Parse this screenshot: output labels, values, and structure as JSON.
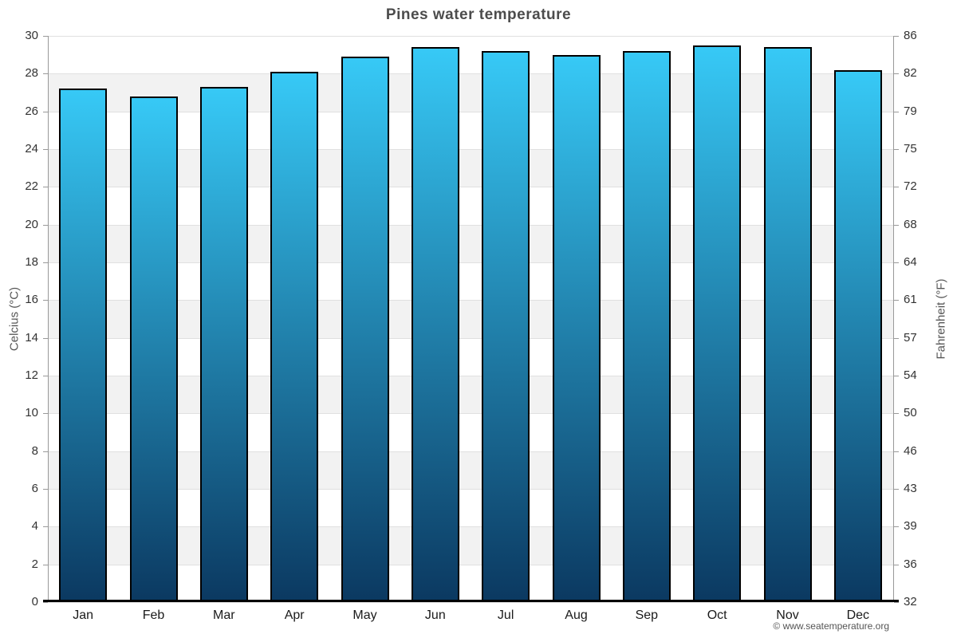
{
  "title": "Pines water temperature",
  "footer": "© www.seatemperature.org",
  "colors": {
    "bar_gradient_top": "#37c9f6",
    "bar_gradient_bottom": "#0b3961",
    "bar_border": "#000000",
    "band_alt": "#f2f2f2",
    "band_base": "#ffffff",
    "gridline": "#e0e0e0",
    "y_axis_line": "#999999",
    "x_axis_line": "#000000",
    "title_text": "#4c4c4c",
    "tick_text": "#333333",
    "month_text": "#1a1a1a",
    "axis_title_text": "#555555",
    "footer_text": "#555555"
  },
  "chart_data": {
    "type": "bar",
    "title": "Pines water temperature",
    "categories": [
      "Jan",
      "Feb",
      "Mar",
      "Apr",
      "May",
      "Jun",
      "Jul",
      "Aug",
      "Sep",
      "Oct",
      "Nov",
      "Dec"
    ],
    "series": [
      {
        "name": "Water temperature",
        "values": [
          27.2,
          26.8,
          27.3,
          28.1,
          28.9,
          29.4,
          29.2,
          29.0,
          29.2,
          29.5,
          29.4,
          28.2
        ]
      }
    ],
    "xlabel": "",
    "ylabel_left": "Celcius (°C)",
    "ylabel_right": "Fahrenheit (°F)",
    "ylim_left": [
      0,
      30
    ],
    "ylim_right": [
      32,
      86
    ],
    "yticks_left": [
      0,
      2,
      4,
      6,
      8,
      10,
      12,
      14,
      16,
      18,
      20,
      22,
      24,
      26,
      28,
      30
    ],
    "yticks_right": [
      32,
      36,
      39,
      43,
      46,
      50,
      54,
      57,
      61,
      64,
      68,
      72,
      75,
      79,
      82,
      86
    ],
    "legend": "none",
    "grid": "horizontal gridlines every 2°C with alternating shaded bands"
  }
}
